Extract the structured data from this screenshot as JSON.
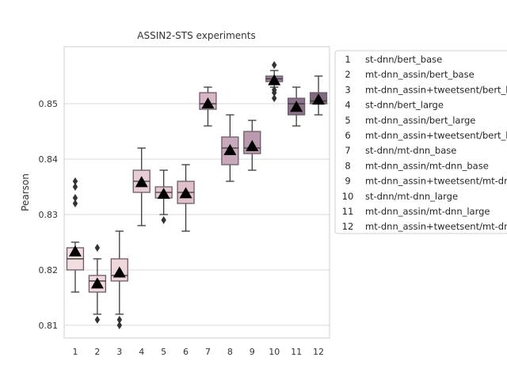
{
  "chart_data": {
    "type": "box",
    "title": "ASSIN2-STS experiments",
    "xlabel": "",
    "ylabel": "Pearson",
    "ylim": [
      0.8077,
      0.8603
    ],
    "yticks": [
      0.81,
      0.82,
      0.83,
      0.84,
      0.85
    ],
    "ytick_labels": [
      "0.81",
      "0.82",
      "0.83",
      "0.84",
      "0.85"
    ],
    "grid": "horizontal",
    "legend_position": "right, outside plot",
    "mean_marker": "triangle",
    "categories": [
      "1",
      "2",
      "3",
      "4",
      "5",
      "6",
      "7",
      "8",
      "9",
      "10",
      "11",
      "12"
    ],
    "legend": [
      {
        "num": "1",
        "label": "st-dnn/bert_base"
      },
      {
        "num": "2",
        "label": "mt-dnn_assin/bert_base"
      },
      {
        "num": "3",
        "label": "mt-dnn_assin+tweetsent/bert_base"
      },
      {
        "num": "4",
        "label": "st-dnn/bert_large"
      },
      {
        "num": "5",
        "label": "mt-dnn_assin/bert_large"
      },
      {
        "num": "6",
        "label": "mt-dnn_assin+tweetsent/bert_large"
      },
      {
        "num": "7",
        "label": "st-dnn/mt-dnn_base"
      },
      {
        "num": "8",
        "label": "mt-dnn_assin/mt-dnn_base"
      },
      {
        "num": "9",
        "label": "mt-dnn_assin+tweetsent/mt-dnn_base"
      },
      {
        "num": "10",
        "label": "st-dnn/mt-dnn_large"
      },
      {
        "num": "11",
        "label": "mt-dnn_assin/mt-dnn_large"
      },
      {
        "num": "12",
        "label": "mt-dnn_assin+tweetsent/mt-dnn_large"
      }
    ],
    "boxes": [
      {
        "category": "1",
        "whisker_low": 0.816,
        "q1": 0.82,
        "median": 0.822,
        "q3": 0.824,
        "whisker_high": 0.825,
        "mean": 0.8233,
        "outliers": [
          0.832,
          0.833,
          0.835,
          0.836
        ],
        "color": "#f2dede"
      },
      {
        "category": "2",
        "whisker_low": 0.812,
        "q1": 0.816,
        "median": 0.818,
        "q3": 0.819,
        "whisker_high": 0.822,
        "mean": 0.8175,
        "outliers": [
          0.811,
          0.824
        ],
        "color": "#f0d8db"
      },
      {
        "category": "3",
        "whisker_low": 0.812,
        "q1": 0.818,
        "median": 0.819,
        "q3": 0.822,
        "whisker_high": 0.827,
        "mean": 0.8195,
        "outliers": [
          0.81,
          0.811
        ],
        "color": "#eed6d9"
      },
      {
        "category": "4",
        "whisker_low": 0.828,
        "q1": 0.834,
        "median": 0.836,
        "q3": 0.838,
        "whisker_high": 0.842,
        "mean": 0.8358,
        "outliers": [],
        "color": "#e8cdd3"
      },
      {
        "category": "5",
        "whisker_low": 0.83,
        "q1": 0.833,
        "median": 0.834,
        "q3": 0.835,
        "whisker_high": 0.838,
        "mean": 0.8337,
        "outliers": [
          0.829
        ],
        "color": "#e4c9d1"
      },
      {
        "category": "6",
        "whisker_low": 0.827,
        "q1": 0.832,
        "median": 0.834,
        "q3": 0.836,
        "whisker_high": 0.839,
        "mean": 0.8338,
        "outliers": [],
        "color": "#dec1cb"
      },
      {
        "category": "7",
        "whisker_low": 0.846,
        "q1": 0.849,
        "median": 0.85,
        "q3": 0.852,
        "whisker_high": 0.853,
        "mean": 0.85,
        "outliers": [],
        "color": "#d7b5c4"
      },
      {
        "category": "8",
        "whisker_low": 0.836,
        "q1": 0.839,
        "median": 0.842,
        "q3": 0.844,
        "whisker_high": 0.848,
        "mean": 0.8416,
        "outliers": [],
        "color": "#c8a8bb"
      },
      {
        "category": "9",
        "whisker_low": 0.838,
        "q1": 0.841,
        "median": 0.842,
        "q3": 0.845,
        "whisker_high": 0.847,
        "mean": 0.8423,
        "outliers": [],
        "color": "#b99aaf"
      },
      {
        "category": "10",
        "whisker_low": 0.853,
        "q1": 0.854,
        "median": 0.8545,
        "q3": 0.855,
        "whisker_high": 0.856,
        "mean": 0.8542,
        "outliers": [
          0.851,
          0.852,
          0.8525,
          0.857
        ],
        "color": "#9a7f98"
      },
      {
        "category": "11",
        "whisker_low": 0.846,
        "q1": 0.848,
        "median": 0.85,
        "q3": 0.851,
        "whisker_high": 0.853,
        "mean": 0.8494,
        "outliers": [],
        "color": "#8b7389"
      },
      {
        "category": "12",
        "whisker_low": 0.848,
        "q1": 0.85,
        "median": 0.8505,
        "q3": 0.852,
        "whisker_high": 0.855,
        "mean": 0.8507,
        "outliers": [],
        "color": "#7f6a80"
      }
    ]
  }
}
